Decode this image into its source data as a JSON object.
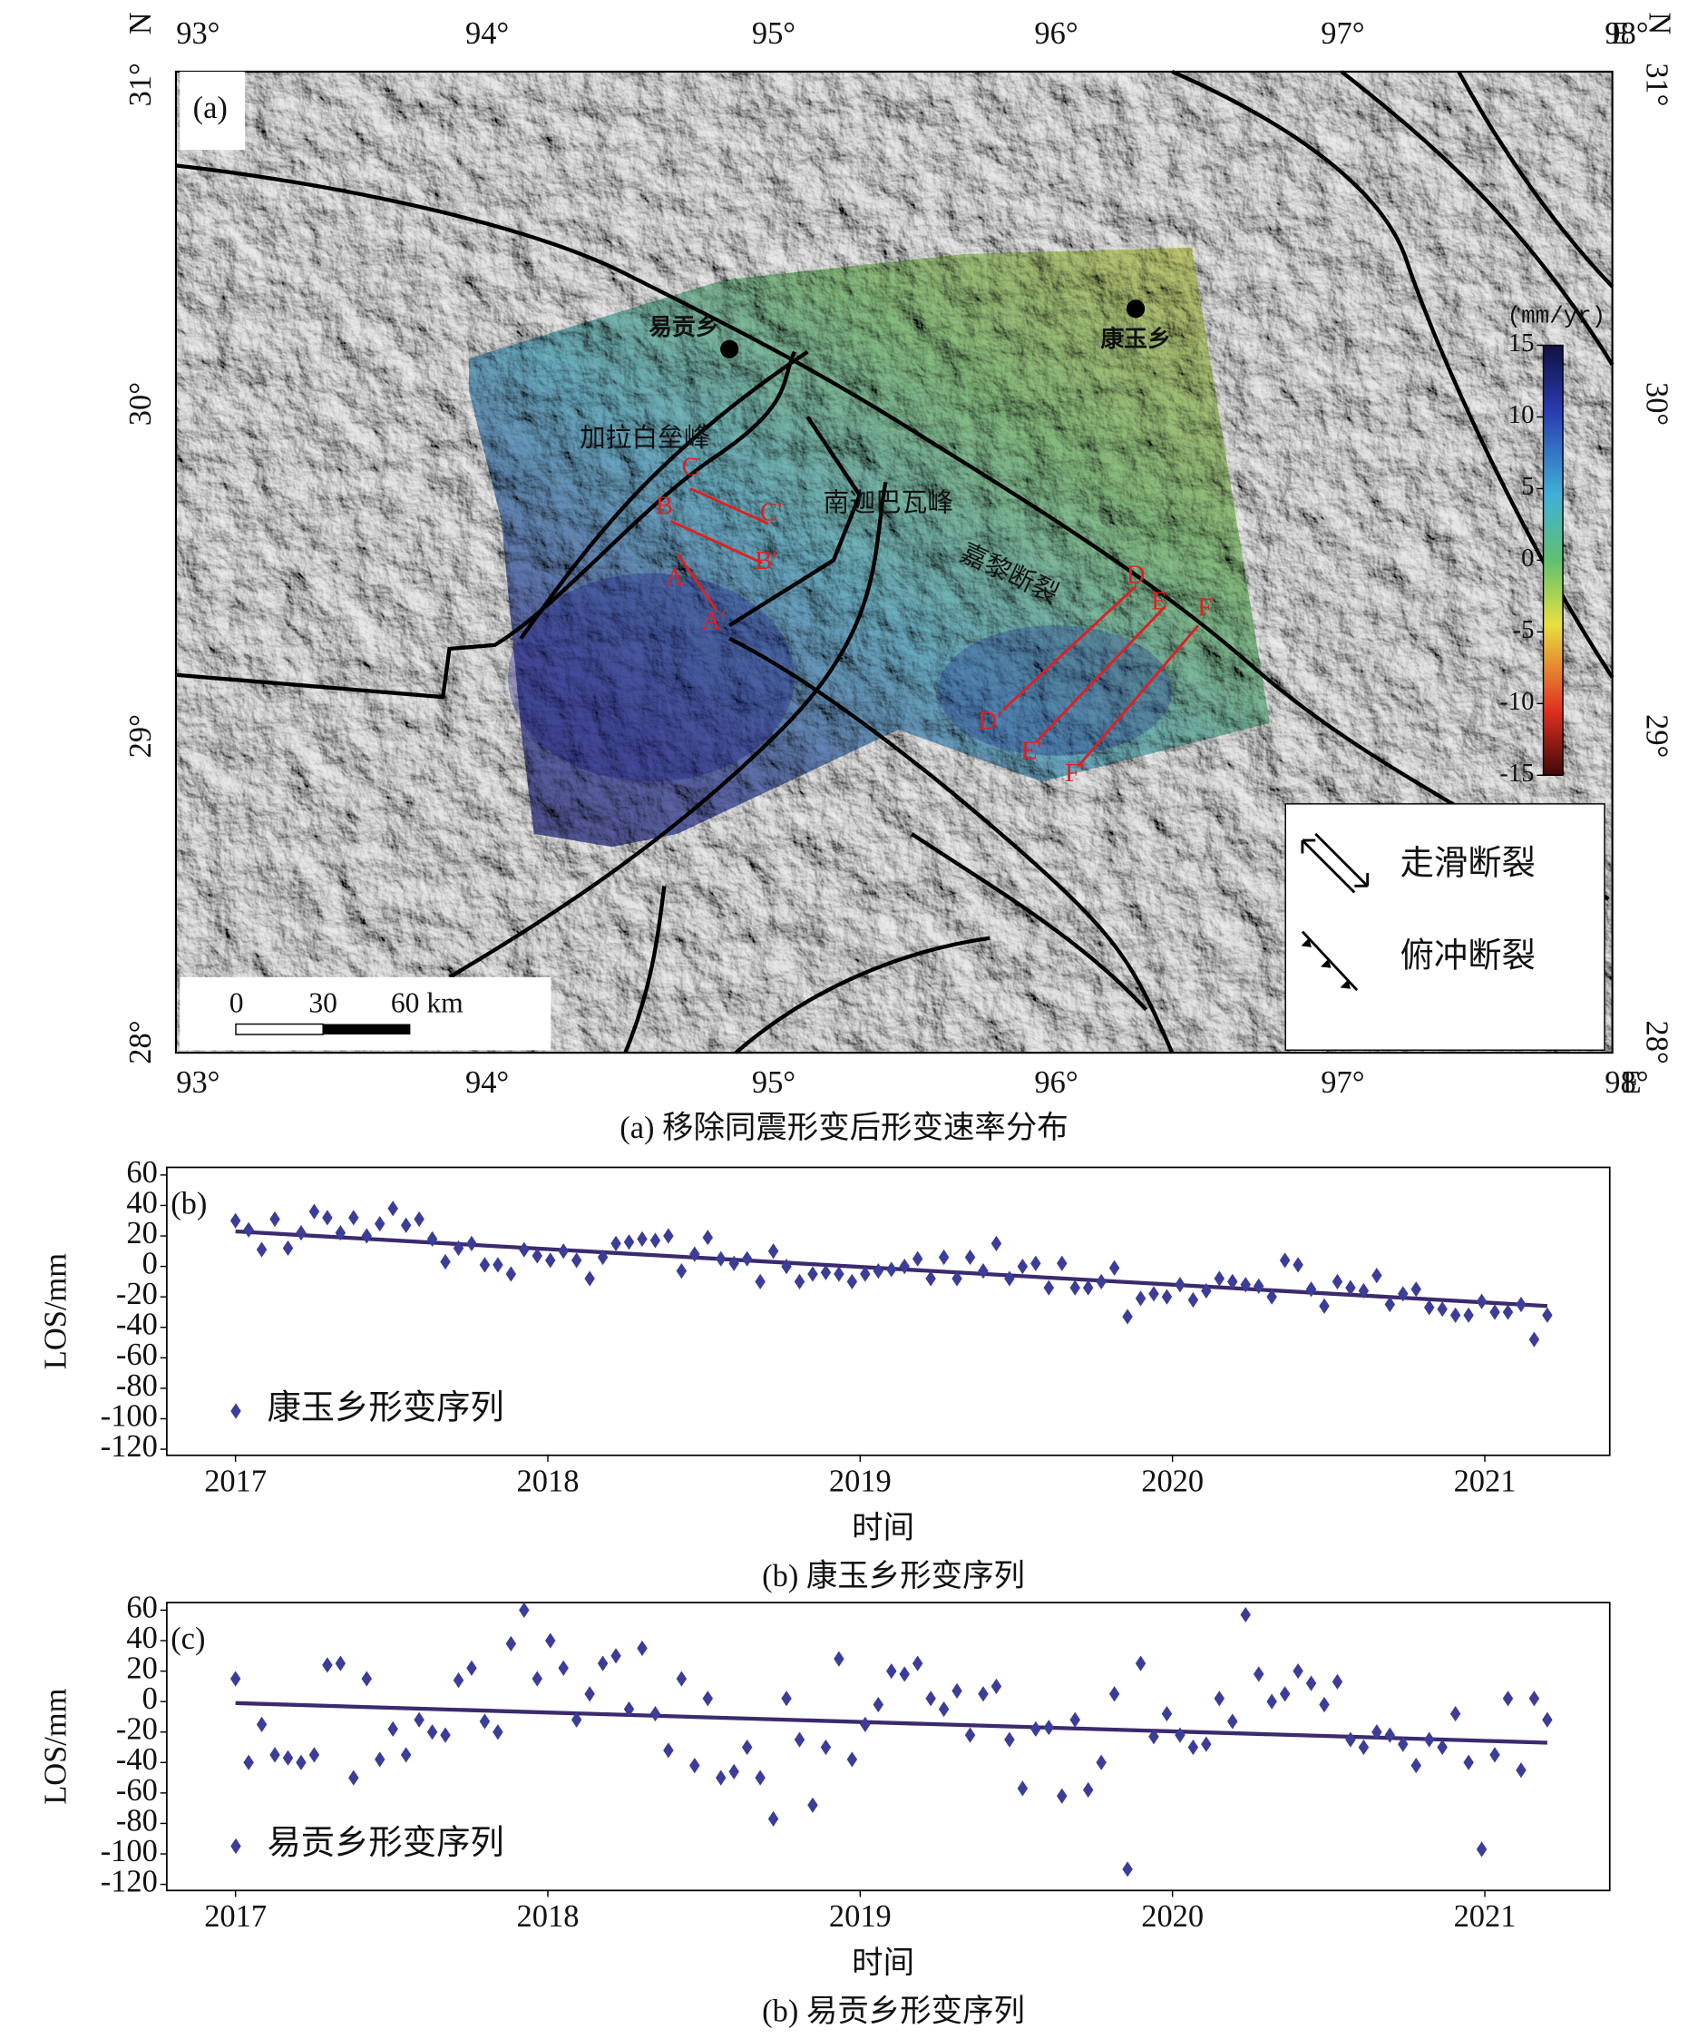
{
  "map": {
    "panel_label": "(a)",
    "lon_labels": [
      "93°",
      "94°",
      "95°",
      "96°",
      "97°",
      "98°"
    ],
    "lat_labels": [
      "31°",
      "30°",
      "29°",
      "28°"
    ],
    "north": "N",
    "east": "E",
    "places": [
      "易贡乡",
      "康玉乡"
    ],
    "peaks": [
      "加拉白垒峰",
      "南迦巴瓦峰"
    ],
    "fault_name": "嘉黎断裂",
    "profiles": [
      "A",
      "A'",
      "B",
      "B'",
      "C",
      "C'",
      "D",
      "D'",
      "E",
      "E'",
      "F",
      "F'"
    ],
    "colorbar": {
      "title": "(mm/yr)",
      "lim": [
        -15,
        15
      ],
      "ticks": [
        15,
        10,
        5,
        0,
        -5,
        -10,
        -15
      ]
    },
    "legend": [
      "走滑断裂",
      "俯冲断裂"
    ],
    "scale": [
      "0",
      "30",
      "60 km"
    ],
    "caption": "(a) 移除同震形变后形变速率分布"
  },
  "chart_data": [
    {
      "type": "scatter",
      "panel_label": "(b)",
      "ylabel": "LOS/mm",
      "xlabel": "时间",
      "caption": "(b) 康玉乡形变序列",
      "x": [
        2017,
        2017.042,
        2017.084,
        2017.126,
        2017.168,
        2017.21,
        2017.252,
        2017.294,
        2017.336,
        2017.378,
        2017.42,
        2017.462,
        2017.504,
        2017.546,
        2017.588,
        2017.63,
        2017.672,
        2017.714,
        2017.756,
        2017.798,
        2017.84,
        2017.882,
        2017.924,
        2017.966,
        2018.008,
        2018.05,
        2018.092,
        2018.134,
        2018.176,
        2018.218,
        2018.26,
        2018.302,
        2018.344,
        2018.386,
        2018.428,
        2018.47,
        2018.512,
        2018.554,
        2018.596,
        2018.638,
        2018.68,
        2018.722,
        2018.764,
        2018.806,
        2018.848,
        2018.89,
        2018.932,
        2018.974,
        2019.016,
        2019.058,
        2019.1,
        2019.142,
        2019.184,
        2019.226,
        2019.268,
        2019.31,
        2019.352,
        2019.394,
        2019.436,
        2019.478,
        2019.52,
        2019.562,
        2019.604,
        2019.646,
        2019.688,
        2019.73,
        2019.772,
        2019.814,
        2019.856,
        2019.898,
        2019.94,
        2019.982,
        2020.024,
        2020.066,
        2020.108,
        2020.15,
        2020.192,
        2020.234,
        2020.276,
        2020.318,
        2020.36,
        2020.402,
        2020.444,
        2020.486,
        2020.528,
        2020.57,
        2020.612,
        2020.654,
        2020.696,
        2020.738,
        2020.78,
        2020.822,
        2020.864,
        2020.906,
        2020.948,
        2020.99,
        2021.032,
        2021.074,
        2021.116,
        2021.158,
        2021.2
      ],
      "series": [
        {
          "name": "康玉乡形变序列",
          "color": "#3c3d98",
          "values": [
            30,
            24,
            11,
            31,
            12,
            22,
            36,
            32,
            22,
            32,
            20,
            28,
            38,
            27,
            31,
            18,
            3,
            12,
            15,
            1,
            1,
            -5,
            11,
            7,
            4,
            10,
            4,
            -8,
            6,
            15,
            16,
            18,
            17,
            20,
            -3,
            8,
            19,
            5,
            2,
            5,
            -10,
            10,
            0,
            -10,
            -5,
            -4,
            -5,
            -10,
            -5,
            -3,
            -2,
            0,
            5,
            -8,
            6,
            -8,
            6,
            -3,
            15,
            -8,
            0,
            2,
            -14,
            2,
            -14,
            -14,
            -10,
            -1,
            -33,
            -21,
            -18,
            -20,
            -12,
            -22,
            -16,
            -8,
            -10,
            -12,
            -13,
            -20,
            4,
            1,
            -15,
            -26,
            -10,
            -14,
            -16,
            -6,
            -25,
            -18,
            -15,
            -27,
            -28,
            -32,
            -32,
            -23,
            -30,
            -30,
            -25,
            -48,
            -32
          ]
        }
      ],
      "trend": {
        "x": [
          2017,
          2021.2
        ],
        "values": [
          23,
          -26
        ],
        "color": "#3b2a6e"
      },
      "xlim": [
        2016.78,
        2021.4
      ],
      "ylim": [
        -124,
        65
      ],
      "xticks": [
        2017,
        2018,
        2019,
        2020,
        2021
      ],
      "yticks": [
        60,
        40,
        20,
        0,
        -20,
        -40,
        -60,
        -80,
        -100,
        -120
      ]
    },
    {
      "type": "scatter",
      "panel_label": "(c)",
      "ylabel": "LOS/mm",
      "xlabel": "时间",
      "caption": "(b) 易贡乡形变序列",
      "x": [
        2017,
        2017.042,
        2017.084,
        2017.126,
        2017.168,
        2017.21,
        2017.252,
        2017.294,
        2017.336,
        2017.378,
        2017.42,
        2017.462,
        2017.504,
        2017.546,
        2017.588,
        2017.63,
        2017.672,
        2017.714,
        2017.756,
        2017.798,
        2017.84,
        2017.882,
        2017.924,
        2017.966,
        2018.008,
        2018.05,
        2018.092,
        2018.134,
        2018.176,
        2018.218,
        2018.26,
        2018.302,
        2018.344,
        2018.386,
        2018.428,
        2018.47,
        2018.512,
        2018.554,
        2018.596,
        2018.638,
        2018.68,
        2018.722,
        2018.764,
        2018.806,
        2018.848,
        2018.89,
        2018.932,
        2018.974,
        2019.016,
        2019.058,
        2019.1,
        2019.142,
        2019.184,
        2019.226,
        2019.268,
        2019.31,
        2019.352,
        2019.394,
        2019.436,
        2019.478,
        2019.52,
        2019.562,
        2019.604,
        2019.646,
        2019.688,
        2019.73,
        2019.772,
        2019.814,
        2019.856,
        2019.898,
        2019.94,
        2019.982,
        2020.024,
        2020.066,
        2020.108,
        2020.15,
        2020.192,
        2020.234,
        2020.276,
        2020.318,
        2020.36,
        2020.402,
        2020.444,
        2020.486,
        2020.528,
        2020.57,
        2020.612,
        2020.654,
        2020.696,
        2020.738,
        2020.78,
        2020.822,
        2020.864,
        2020.906,
        2020.948,
        2020.99,
        2021.032,
        2021.074,
        2021.116,
        2021.158,
        2021.2
      ],
      "series": [
        {
          "name": "易贡乡形变序列",
          "color": "#3c3d98",
          "values": [
            15,
            -40,
            -15,
            -35,
            -37,
            -40,
            -35,
            24,
            25,
            -50,
            15,
            -38,
            -18,
            -35,
            -12,
            -20,
            -22,
            14,
            22,
            -13,
            -20,
            38,
            60,
            15,
            40,
            22,
            -12,
            5,
            25,
            30,
            -5,
            35,
            -8,
            -32,
            15,
            -42,
            2,
            -50,
            -46,
            -30,
            -50,
            -77,
            2,
            -25,
            -68,
            -30,
            28,
            -38,
            -15,
            -2,
            20,
            18,
            25,
            2,
            -5,
            7,
            -22,
            5,
            10,
            -25,
            -57,
            -18,
            -17,
            -62,
            -12,
            -58,
            -40,
            5,
            -110,
            25,
            -23,
            -8,
            -22,
            -30,
            -28,
            2,
            -13,
            57,
            18,
            0,
            5,
            20,
            12,
            -2,
            13,
            -25,
            -30,
            -20,
            -22,
            -28,
            -42,
            -25,
            -30,
            -8,
            -40,
            -97,
            -35,
            2,
            -45,
            2,
            -12
          ]
        }
      ],
      "trend": {
        "x": [
          2017,
          2021.2
        ],
        "values": [
          -1,
          -27
        ],
        "color": "#3b2a6e"
      },
      "xlim": [
        2016.78,
        2021.4
      ],
      "ylim": [
        -124,
        65
      ],
      "xticks": [
        2017,
        2018,
        2019,
        2020,
        2021
      ],
      "yticks": [
        60,
        40,
        20,
        0,
        -20,
        -40,
        -60,
        -80,
        -100,
        -120
      ]
    }
  ]
}
